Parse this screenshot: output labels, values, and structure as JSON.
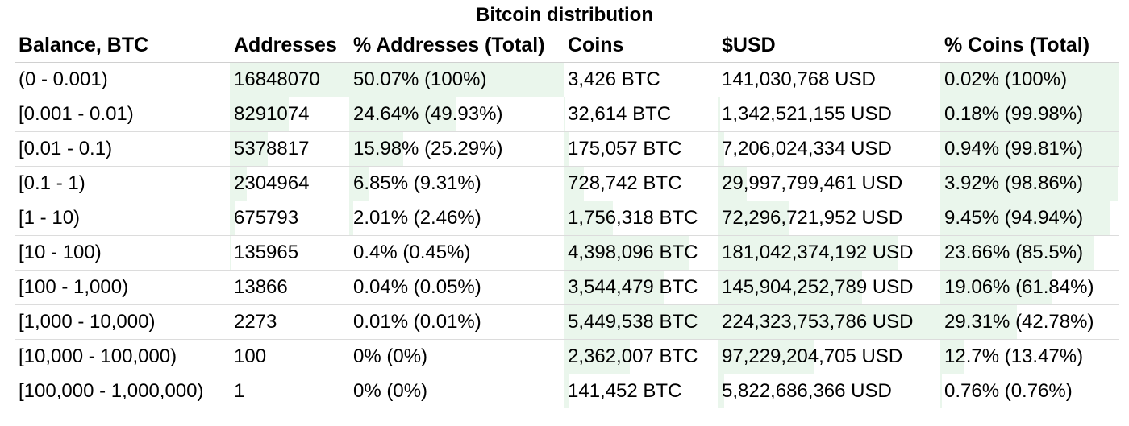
{
  "title": "Bitcoin distribution",
  "bar_color": "#eaf6ec",
  "columns": [
    "Balance, BTC",
    "Addresses",
    "% Addresses (Total)",
    "Coins",
    "$USD",
    "% Coins (Total)"
  ],
  "rows": [
    {
      "balance": "(0 - 0.001)",
      "addresses": "16848070",
      "pct_addresses": "50.07% (100%)",
      "coins": "3,426 BTC",
      "usd": "141,030,768 USD",
      "pct_coins": "0.02% (100%)",
      "addr_fill": 1.0,
      "pctaddr_fill": 1.0,
      "coins_fill": 0.0,
      "usd_fill": 0.0,
      "pctcoins_fill": 1.0
    },
    {
      "balance": "[0.001 - 0.01)",
      "addresses": "8291074",
      "pct_addresses": "24.64% (49.93%)",
      "coins": "32,614 BTC",
      "usd": "1,342,521,155 USD",
      "pct_coins": "0.18% (99.98%)",
      "addr_fill": 0.49,
      "pctaddr_fill": 0.5,
      "coins_fill": 0.01,
      "usd_fill": 0.01,
      "pctcoins_fill": 1.0
    },
    {
      "balance": "[0.01 - 0.1)",
      "addresses": "5378817",
      "pct_addresses": "15.98% (25.29%)",
      "coins": "175,057 BTC",
      "usd": "7,206,024,334 USD",
      "pct_coins": "0.94% (99.81%)",
      "addr_fill": 0.32,
      "pctaddr_fill": 0.25,
      "coins_fill": 0.03,
      "usd_fill": 0.03,
      "pctcoins_fill": 1.0
    },
    {
      "balance": "[0.1 - 1)",
      "addresses": "2304964",
      "pct_addresses": "6.85% (9.31%)",
      "coins": "728,742 BTC",
      "usd": "29,997,799,461 USD",
      "pct_coins": "3.92% (98.86%)",
      "addr_fill": 0.14,
      "pctaddr_fill": 0.09,
      "coins_fill": 0.13,
      "usd_fill": 0.13,
      "pctcoins_fill": 0.99
    },
    {
      "balance": "[1 - 10)",
      "addresses": "675793",
      "pct_addresses": "2.01% (2.46%)",
      "coins": "1,756,318 BTC",
      "usd": "72,296,721,952 USD",
      "pct_coins": "9.45% (94.94%)",
      "addr_fill": 0.04,
      "pctaddr_fill": 0.02,
      "coins_fill": 0.32,
      "usd_fill": 0.32,
      "pctcoins_fill": 0.95
    },
    {
      "balance": "[10 - 100)",
      "addresses": "135965",
      "pct_addresses": "0.4% (0.45%)",
      "coins": "4,398,096 BTC",
      "usd": "181,042,374,192 USD",
      "pct_coins": "23.66% (85.5%)",
      "addr_fill": 0.01,
      "pctaddr_fill": 0.0,
      "coins_fill": 0.81,
      "usd_fill": 0.81,
      "pctcoins_fill": 0.86
    },
    {
      "balance": "[100 - 1,000)",
      "addresses": "13866",
      "pct_addresses": "0.04% (0.05%)",
      "coins": "3,544,479 BTC",
      "usd": "145,904,252,789 USD",
      "pct_coins": "19.06% (61.84%)",
      "addr_fill": 0.0,
      "pctaddr_fill": 0.0,
      "coins_fill": 0.65,
      "usd_fill": 0.65,
      "pctcoins_fill": 0.62
    },
    {
      "balance": "[1,000 - 10,000)",
      "addresses": "2273",
      "pct_addresses": "0.01% (0.01%)",
      "coins": "5,449,538 BTC",
      "usd": "224,323,753,786 USD",
      "pct_coins": "29.31% (42.78%)",
      "addr_fill": 0.0,
      "pctaddr_fill": 0.0,
      "coins_fill": 1.0,
      "usd_fill": 1.0,
      "pctcoins_fill": 0.43
    },
    {
      "balance": "[10,000 - 100,000)",
      "addresses": "100",
      "pct_addresses": "0% (0%)",
      "coins": "2,362,007 BTC",
      "usd": "97,229,204,705 USD",
      "pct_coins": "12.7% (13.47%)",
      "addr_fill": 0.0,
      "pctaddr_fill": 0.0,
      "coins_fill": 0.43,
      "usd_fill": 0.43,
      "pctcoins_fill": 0.13
    },
    {
      "balance": "[100,000 - 1,000,000)",
      "addresses": "1",
      "pct_addresses": "0% (0%)",
      "coins": "141,452 BTC",
      "usd": "5,822,686,366 USD",
      "pct_coins": "0.76% (0.76%)",
      "addr_fill": 0.0,
      "pctaddr_fill": 0.0,
      "coins_fill": 0.03,
      "usd_fill": 0.03,
      "pctcoins_fill": 0.01
    }
  ]
}
